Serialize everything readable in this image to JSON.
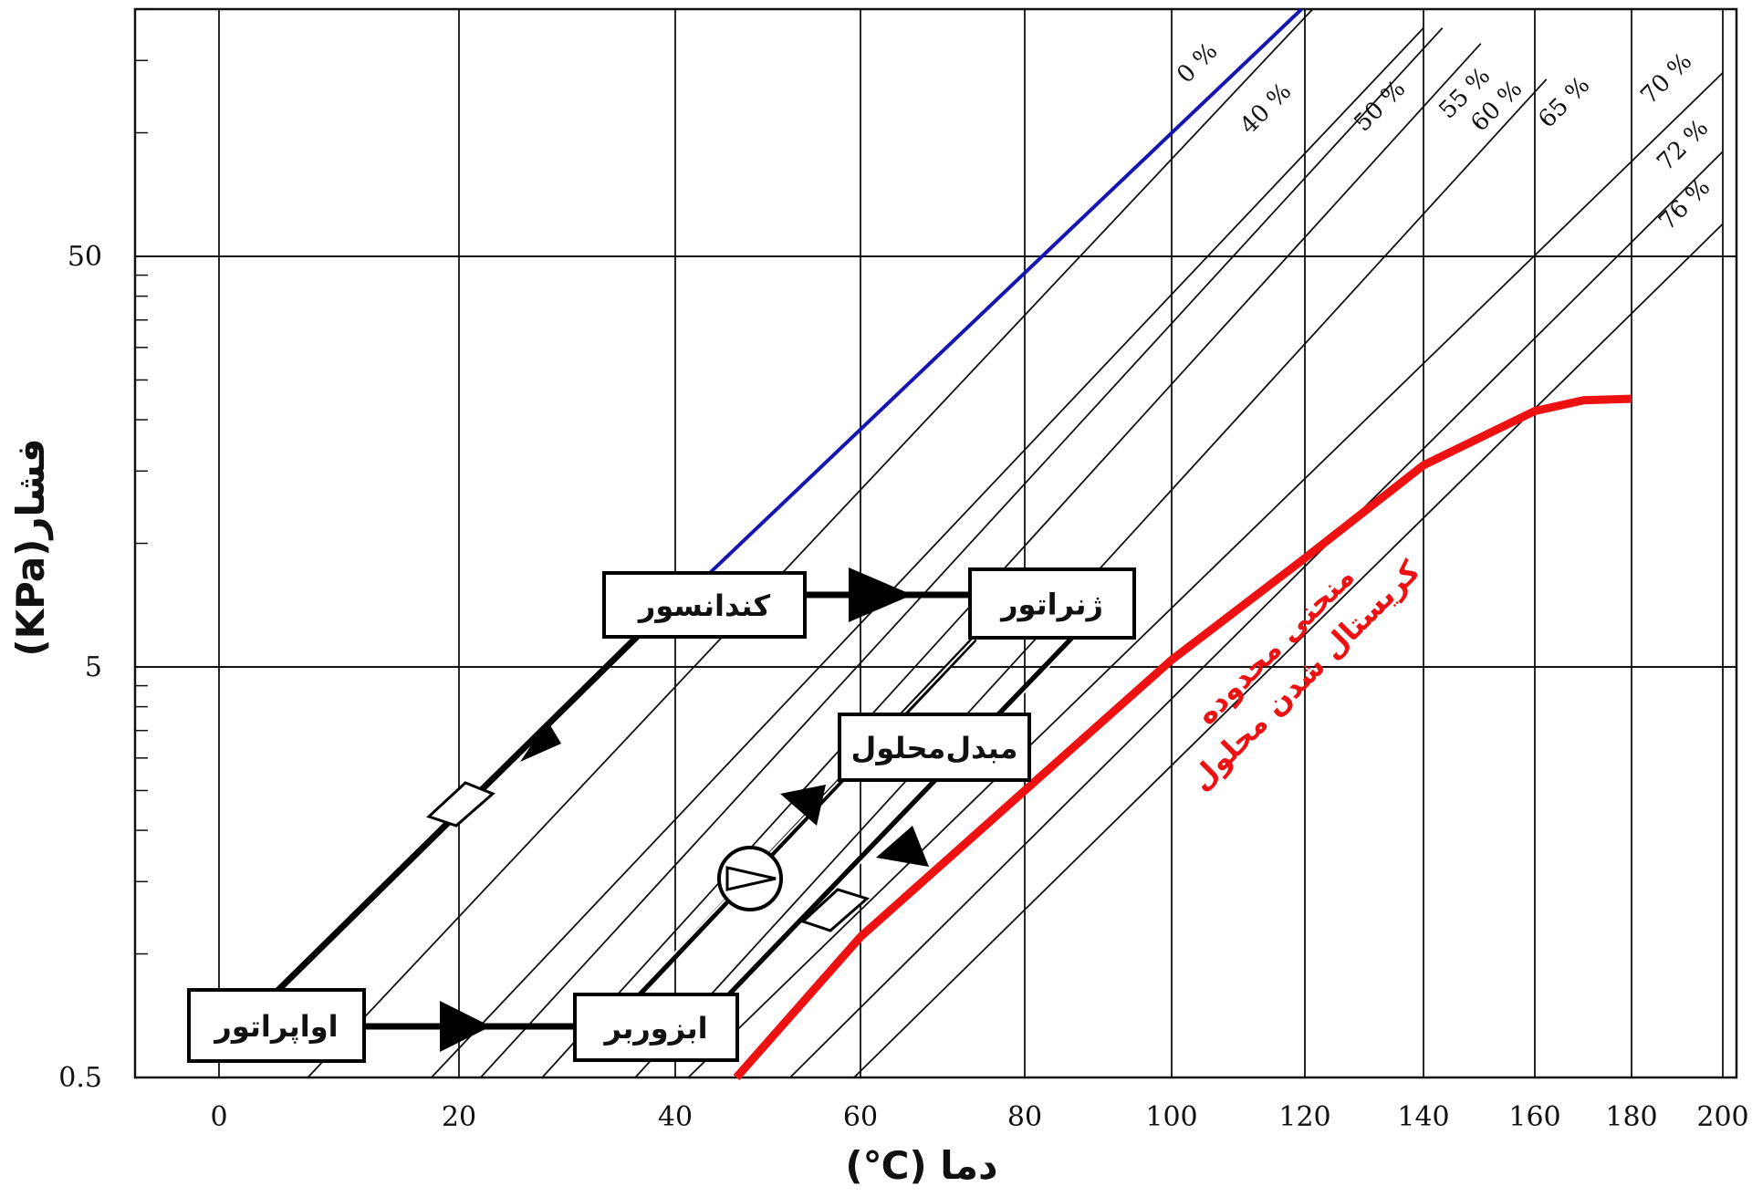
{
  "chart_data": {
    "type": "line",
    "title": "",
    "xlabel": "دما (℃)",
    "ylabel": "فشار(KPa)",
    "x_ticks": [
      "0",
      "20",
      "40",
      "60",
      "80",
      "100",
      "120",
      "140",
      "160",
      "180",
      "200"
    ],
    "y_ticks": [
      "0.5",
      "5",
      "50"
    ],
    "xlim": [
      -10,
      200
    ],
    "ylim": [
      0.5,
      200
    ],
    "y_scale": "log",
    "grid": true,
    "series": [
      {
        "name": "0 %",
        "color": "#1515b4",
        "points": [
          [
            43.8,
            8.5
          ],
          [
            119.5,
            200
          ]
        ]
      },
      {
        "name": "40 %",
        "points": [
          [
            7.4,
            0.5
          ],
          [
            121.3,
            200
          ]
        ]
      },
      {
        "name": "50 %",
        "points": [
          [
            17.7,
            0.5
          ],
          [
            140.0,
            180
          ]
        ]
      },
      {
        "name": "55 %",
        "points": [
          [
            22.0,
            0.5
          ],
          [
            143.4,
            180
          ]
        ]
      },
      {
        "name": "60 %",
        "points": [
          [
            27.7,
            0.5
          ],
          [
            150.3,
            165
          ]
        ]
      },
      {
        "name": "65 %",
        "points": [
          [
            36.3,
            0.5
          ],
          [
            162.4,
            135
          ]
        ]
      },
      {
        "name": "70 %",
        "points": [
          [
            41.4,
            0.5
          ],
          [
            200.0,
            140
          ]
        ]
      },
      {
        "name": "72 %",
        "points": [
          [
            52.4,
            0.5
          ],
          [
            200.0,
            90
          ]
        ]
      },
      {
        "name": "76 %",
        "points": [
          [
            59.3,
            0.5
          ],
          [
            200.0,
            60
          ]
        ]
      }
    ],
    "crystallization_curve": {
      "label_line1": "منحنی محدوده",
      "label_line2": "کریستال شدن محلول",
      "color": "#ee1111",
      "points": [
        [
          46.6,
          0.5
        ],
        [
          60,
          1.1
        ],
        [
          80,
          2.5
        ],
        [
          100,
          5.2
        ],
        [
          120,
          9.2
        ],
        [
          140,
          15.5
        ],
        [
          160,
          21.0
        ],
        [
          170,
          22.3
        ],
        [
          180,
          22.5
        ]
      ]
    },
    "components": [
      {
        "label": "کندانسور"
      },
      {
        "label": "ژنراتور"
      },
      {
        "label": "مبدل‌محلول"
      },
      {
        "label": "اواپراتور"
      },
      {
        "label": "ابزوربر"
      }
    ]
  }
}
